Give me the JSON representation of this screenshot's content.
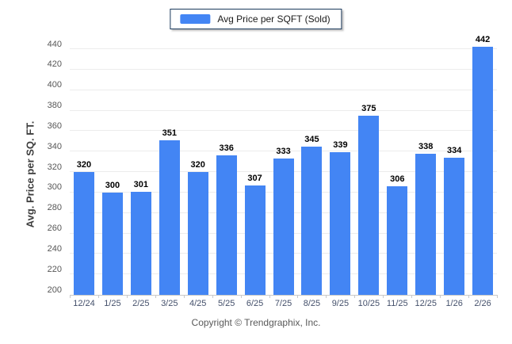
{
  "legend": {
    "label": "Avg Price per SQFT (Sold)"
  },
  "footer": {
    "copyright": "Copyright © Trendgraphix, Inc."
  },
  "colors": {
    "bar": "#4385f4"
  },
  "chart_data": {
    "type": "bar",
    "title": "",
    "categories": [
      "12/24",
      "1/25",
      "2/25",
      "3/25",
      "4/25",
      "5/25",
      "6/25",
      "7/25",
      "8/25",
      "9/25",
      "10/25",
      "11/25",
      "12/25",
      "1/26",
      "2/26"
    ],
    "values": [
      320,
      300,
      301,
      351,
      320,
      336,
      307,
      333,
      345,
      339,
      375,
      306,
      338,
      334,
      442
    ],
    "series_name": "Avg Price per SQFT (Sold)",
    "xlabel": "",
    "ylabel": "Avg. Price per SQ. FT.",
    "ylim": [
      200,
      440
    ],
    "yticks": [
      200,
      220,
      240,
      260,
      280,
      300,
      320,
      340,
      360,
      380,
      400,
      420,
      440
    ],
    "grid": true,
    "legend_position": "top-center",
    "value_labels": true,
    "bar_color": "#4385f4"
  }
}
